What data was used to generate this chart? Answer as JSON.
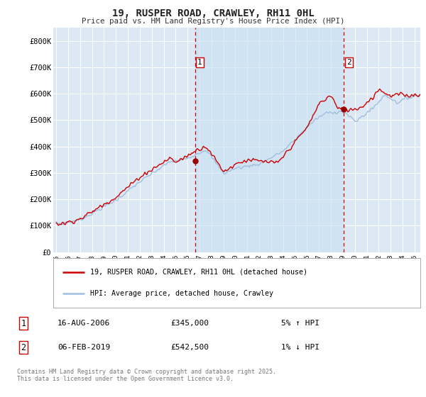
{
  "title": "19, RUSPER ROAD, CRAWLEY, RH11 0HL",
  "subtitle": "Price paid vs. HM Land Registry's House Price Index (HPI)",
  "legend_label_hpi": "HPI: Average price, detached house, Crawley",
  "legend_label_price": "19, RUSPER ROAD, CRAWLEY, RH11 0HL (detached house)",
  "background_color": "#ffffff",
  "plot_bg_color": "#dce9f5",
  "shade_color": "#c8dff0",
  "grid_color": "#ffffff",
  "hpi_color": "#a0bfdf",
  "price_color": "#cc0000",
  "sale_dot_color": "#990000",
  "dashed_line_color": "#cc0000",
  "ylim": [
    0,
    850000
  ],
  "yticks": [
    0,
    100000,
    200000,
    300000,
    400000,
    500000,
    600000,
    700000,
    800000
  ],
  "ytick_labels": [
    "£0",
    "£100K",
    "£200K",
    "£300K",
    "£400K",
    "£500K",
    "£600K",
    "£700K",
    "£800K"
  ],
  "xlim_start": 1994.75,
  "xlim_end": 2025.5,
  "xticks": [
    1995,
    1996,
    1997,
    1998,
    1999,
    2000,
    2001,
    2002,
    2003,
    2004,
    2005,
    2006,
    2007,
    2008,
    2009,
    2010,
    2011,
    2012,
    2013,
    2014,
    2015,
    2016,
    2017,
    2018,
    2019,
    2020,
    2021,
    2022,
    2023,
    2024,
    2025
  ],
  "sale1_x": 2006.617,
  "sale1_y": 345000,
  "sale1_label": "1",
  "sale1_date": "16-AUG-2006",
  "sale1_price": "£345,000",
  "sale1_hpi": "5% ↑ HPI",
  "sale2_x": 2019.09,
  "sale2_y": 542500,
  "sale2_label": "2",
  "sale2_date": "06-FEB-2019",
  "sale2_price": "£542,500",
  "sale2_hpi": "1% ↓ HPI",
  "footnote": "Contains HM Land Registry data © Crown copyright and database right 2025.\nThis data is licensed under the Open Government Licence v3.0."
}
